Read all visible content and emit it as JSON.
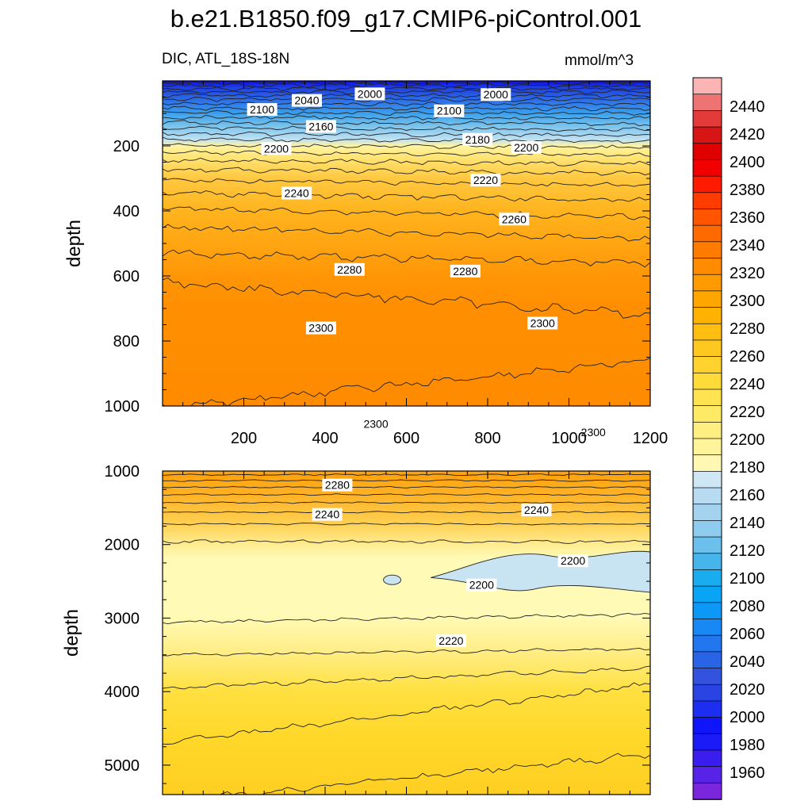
{
  "title": "b.e21.B1850.f09_g17.CMIP6-piControl.001",
  "subtitle_left": "DIC, ATL_18S-18N",
  "subtitle_right": "mmol/m^3",
  "chart_data": [
    {
      "type": "heatmap",
      "panel": "upper",
      "ylabel": "depth",
      "xlabel": "",
      "xlim": [
        0,
        1200
      ],
      "ylim": [
        0,
        1000
      ],
      "y_inverted": true,
      "x_ticks": [
        "200",
        "400",
        "600",
        "800",
        "1000",
        "1200"
      ],
      "y_ticks": [
        "200",
        "400",
        "600",
        "800",
        "1000"
      ],
      "contour_labels": [
        {
          "value": "2000",
          "x": 510,
          "y": 40
        },
        {
          "value": "2000",
          "x": 820,
          "y": 42
        },
        {
          "value": "2040",
          "x": 355,
          "y": 60
        },
        {
          "value": "2100",
          "x": 245,
          "y": 88
        },
        {
          "value": "2100",
          "x": 705,
          "y": 92
        },
        {
          "value": "2160",
          "x": 390,
          "y": 140
        },
        {
          "value": "2180",
          "x": 775,
          "y": 180
        },
        {
          "value": "2200",
          "x": 280,
          "y": 208
        },
        {
          "value": "2200",
          "x": 895,
          "y": 205
        },
        {
          "value": "2220",
          "x": 795,
          "y": 305
        },
        {
          "value": "2240",
          "x": 330,
          "y": 345
        },
        {
          "value": "2260",
          "x": 865,
          "y": 425
        },
        {
          "value": "2280",
          "x": 460,
          "y": 580
        },
        {
          "value": "2280",
          "x": 745,
          "y": 585
        },
        {
          "value": "2300",
          "x": 390,
          "y": 760
        },
        {
          "value": "2300",
          "x": 935,
          "y": 745
        },
        {
          "value": "2300",
          "x": 525,
          "y": 1055
        },
        {
          "value": "2300",
          "x": 1060,
          "y": 1080
        }
      ]
    },
    {
      "type": "heatmap",
      "panel": "lower",
      "ylabel": "depth",
      "xlabel": "",
      "xlim": [
        0,
        1200
      ],
      "ylim": [
        1000,
        5400
      ],
      "y_inverted": true,
      "y_ticks": [
        "1000",
        "2000",
        "3000",
        "4000",
        "5000"
      ],
      "contour_labels": [
        {
          "value": "2280",
          "x": 430,
          "y": 1190
        },
        {
          "value": "2240",
          "x": 405,
          "y": 1590
        },
        {
          "value": "2240",
          "x": 920,
          "y": 1530
        },
        {
          "value": "2200",
          "x": 1010,
          "y": 2220
        },
        {
          "value": "2200",
          "x": 785,
          "y": 2550
        },
        {
          "value": "2220",
          "x": 710,
          "y": 3310
        }
      ]
    }
  ],
  "colorbar": {
    "labels": [
      "2440",
      "2420",
      "2400",
      "2380",
      "2360",
      "2340",
      "2320",
      "2300",
      "2280",
      "2260",
      "2240",
      "2220",
      "2200",
      "2180",
      "2160",
      "2140",
      "2120",
      "2100",
      "2080",
      "2060",
      "2040",
      "2020",
      "2000",
      "1980",
      "1960"
    ],
    "colors": [
      "#fbb4b4",
      "#ee7474",
      "#e33a3a",
      "#d81515",
      "#e00000",
      "#f20000",
      "#ff1a00",
      "#ff3c00",
      "#ff5500",
      "#ff6a00",
      "#ff7c00",
      "#ff8c00",
      "#ff9a00",
      "#ffa600",
      "#ffb200",
      "#ffbe10",
      "#ffc820",
      "#ffd22d",
      "#ffdb3a",
      "#ffe350",
      "#ffea65",
      "#ffef80",
      "#fff49a",
      "#fff8b5",
      "#cfe6f5",
      "#b8dbf1",
      "#a3d3ef",
      "#8fcbee",
      "#6cc0ec",
      "#46b5eb",
      "#19acef",
      "#0aa4f5",
      "#0b98f6",
      "#1788f4",
      "#2276ee",
      "#2a64e6",
      "#3353df",
      "#2a44e3",
      "#1d2ef0",
      "#1014f9",
      "#1b1bf8",
      "#3a1ef0",
      "#5723e6",
      "#7a26dd"
    ]
  }
}
